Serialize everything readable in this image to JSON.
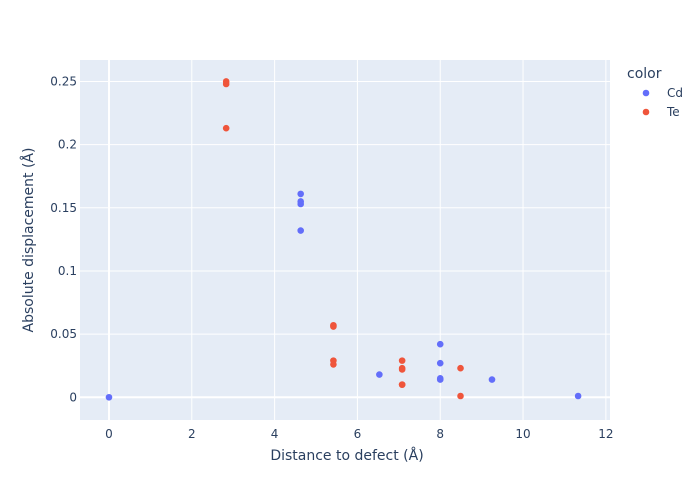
{
  "chart_data": {
    "type": "scatter",
    "title": "",
    "xlabel": "Distance to defect (Å)",
    "ylabel": "Absolute displacement (Å)",
    "xlim": [
      -0.7,
      12.1
    ],
    "ylim": [
      -0.018,
      0.267
    ],
    "x_ticks": [
      0,
      2,
      4,
      6,
      8,
      10,
      12
    ],
    "x_tick_labels": [
      "0",
      "2",
      "4",
      "6",
      "8",
      "10",
      "12"
    ],
    "y_ticks": [
      0,
      0.05,
      0.1,
      0.15,
      0.2,
      0.25
    ],
    "y_tick_labels": [
      "0",
      "0.05",
      "0.1",
      "0.15",
      "0.2",
      "0.25"
    ],
    "grid": true,
    "legend": {
      "title": "color",
      "placement": "top-right outside"
    },
    "series": [
      {
        "name": "Cd",
        "color": "#636efa",
        "x": [
          0,
          4.63,
          4.63,
          4.63,
          4.63,
          6.53,
          8.0,
          8.0,
          8.0,
          8.0,
          9.25,
          11.33
        ],
        "y": [
          0,
          0.161,
          0.155,
          0.153,
          0.132,
          0.018,
          0.042,
          0.027,
          0.015,
          0.014,
          0.014,
          0.001
        ]
      },
      {
        "name": "Te",
        "color": "#ef553b",
        "x": [
          2.83,
          2.83,
          2.83,
          5.42,
          5.42,
          5.42,
          5.42,
          7.08,
          7.08,
          7.08,
          7.08,
          7.08,
          8.49,
          8.49
        ],
        "y": [
          0.25,
          0.248,
          0.213,
          0.057,
          0.056,
          0.029,
          0.026,
          0.029,
          0.023,
          0.022,
          0.01,
          0.01,
          0.023,
          0.001
        ]
      }
    ]
  }
}
